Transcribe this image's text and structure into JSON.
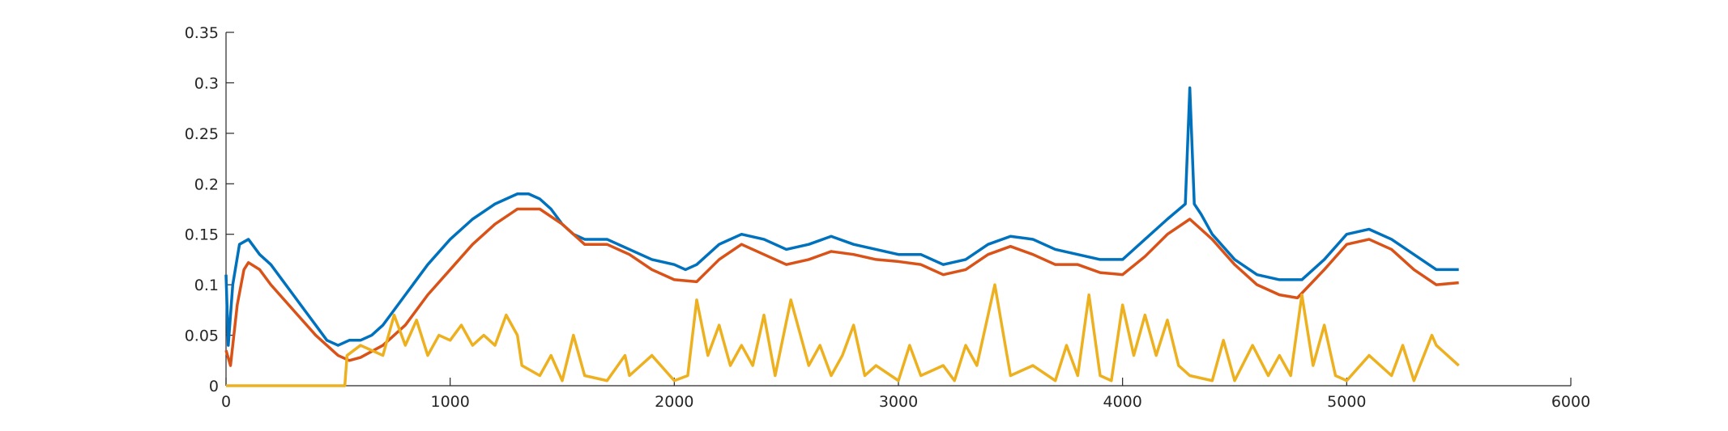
{
  "chart_data": {
    "type": "line",
    "xlim": [
      0,
      6000
    ],
    "xticks": [
      0,
      1000,
      2000,
      3000,
      4000,
      5000,
      6000
    ],
    "ylim": [
      0,
      0.35
    ],
    "yticks": [
      0,
      0.05,
      0.1,
      0.15,
      0.2,
      0.25,
      0.3,
      0.35
    ],
    "grid": false,
    "series": [
      {
        "color": "#0072bd",
        "x": [
          0,
          10,
          30,
          60,
          100,
          150,
          200,
          250,
          300,
          350,
          400,
          450,
          500,
          550,
          600,
          650,
          700,
          750,
          800,
          900,
          1000,
          1100,
          1200,
          1300,
          1350,
          1400,
          1450,
          1500,
          1550,
          1600,
          1700,
          1800,
          1900,
          2000,
          2050,
          2100,
          2200,
          2300,
          2400,
          2500,
          2600,
          2700,
          2800,
          2900,
          3000,
          3100,
          3200,
          3300,
          3400,
          3500,
          3600,
          3700,
          3800,
          3900,
          4000,
          4100,
          4200,
          4280,
          4300,
          4320,
          4350,
          4400,
          4500,
          4600,
          4700,
          4800,
          4900,
          5000,
          5100,
          5200,
          5300,
          5400,
          5500
        ],
        "values": [
          0.11,
          0.04,
          0.1,
          0.14,
          0.145,
          0.13,
          0.12,
          0.105,
          0.09,
          0.075,
          0.06,
          0.045,
          0.04,
          0.045,
          0.045,
          0.05,
          0.06,
          0.075,
          0.09,
          0.12,
          0.145,
          0.165,
          0.18,
          0.19,
          0.19,
          0.185,
          0.175,
          0.16,
          0.15,
          0.145,
          0.145,
          0.135,
          0.125,
          0.12,
          0.115,
          0.12,
          0.14,
          0.15,
          0.145,
          0.135,
          0.14,
          0.148,
          0.14,
          0.135,
          0.13,
          0.13,
          0.12,
          0.125,
          0.14,
          0.148,
          0.145,
          0.135,
          0.13,
          0.125,
          0.125,
          0.145,
          0.165,
          0.18,
          0.295,
          0.18,
          0.17,
          0.15,
          0.125,
          0.11,
          0.105,
          0.105,
          0.125,
          0.15,
          0.155,
          0.145,
          0.13,
          0.115,
          0.115
        ]
      },
      {
        "color": "#d95319",
        "x": [
          0,
          20,
          50,
          80,
          100,
          150,
          200,
          300,
          400,
          500,
          550,
          600,
          700,
          800,
          900,
          1000,
          1100,
          1200,
          1300,
          1400,
          1500,
          1600,
          1700,
          1800,
          1900,
          2000,
          2100,
          2200,
          2300,
          2400,
          2500,
          2600,
          2700,
          2800,
          2900,
          3000,
          3100,
          3200,
          3300,
          3400,
          3500,
          3600,
          3700,
          3800,
          3900,
          4000,
          4100,
          4200,
          4300,
          4400,
          4500,
          4600,
          4700,
          4780,
          4900,
          5000,
          5100,
          5200,
          5300,
          5400,
          5500
        ],
        "values": [
          0.035,
          0.02,
          0.08,
          0.115,
          0.122,
          0.115,
          0.1,
          0.075,
          0.05,
          0.03,
          0.025,
          0.028,
          0.04,
          0.06,
          0.09,
          0.115,
          0.14,
          0.16,
          0.175,
          0.175,
          0.16,
          0.14,
          0.14,
          0.13,
          0.115,
          0.105,
          0.103,
          0.125,
          0.14,
          0.13,
          0.12,
          0.125,
          0.133,
          0.13,
          0.125,
          0.123,
          0.12,
          0.11,
          0.115,
          0.13,
          0.138,
          0.13,
          0.12,
          0.12,
          0.112,
          0.11,
          0.128,
          0.15,
          0.165,
          0.145,
          0.12,
          0.1,
          0.09,
          0.087,
          0.115,
          0.14,
          0.145,
          0.135,
          0.115,
          0.1,
          0.102
        ]
      },
      {
        "color": "#edb120",
        "x": [
          0,
          530,
          540,
          600,
          700,
          750,
          800,
          850,
          900,
          950,
          1000,
          1050,
          1100,
          1150,
          1200,
          1250,
          1300,
          1320,
          1400,
          1450,
          1500,
          1550,
          1600,
          1700,
          1780,
          1800,
          1900,
          2000,
          2060,
          2100,
          2150,
          2200,
          2250,
          2300,
          2350,
          2400,
          2450,
          2520,
          2600,
          2650,
          2700,
          2750,
          2800,
          2850,
          2900,
          3000,
          3050,
          3100,
          3200,
          3250,
          3300,
          3350,
          3430,
          3500,
          3600,
          3700,
          3750,
          3800,
          3850,
          3900,
          3950,
          4000,
          4050,
          4100,
          4150,
          4200,
          4250,
          4300,
          4400,
          4450,
          4500,
          4580,
          4650,
          4700,
          4750,
          4800,
          4850,
          4900,
          4950,
          5000,
          5100,
          5200,
          5250,
          5300,
          5380,
          5400,
          5450,
          5500
        ],
        "values": [
          0,
          0,
          0.03,
          0.04,
          0.03,
          0.07,
          0.04,
          0.065,
          0.03,
          0.05,
          0.045,
          0.06,
          0.04,
          0.05,
          0.04,
          0.07,
          0.05,
          0.02,
          0.01,
          0.03,
          0.005,
          0.05,
          0.01,
          0.005,
          0.03,
          0.01,
          0.03,
          0.005,
          0.01,
          0.085,
          0.03,
          0.06,
          0.02,
          0.04,
          0.02,
          0.07,
          0.01,
          0.085,
          0.02,
          0.04,
          0.01,
          0.03,
          0.06,
          0.01,
          0.02,
          0.005,
          0.04,
          0.01,
          0.02,
          0.005,
          0.04,
          0.02,
          0.1,
          0.01,
          0.02,
          0.005,
          0.04,
          0.01,
          0.09,
          0.01,
          0.005,
          0.08,
          0.03,
          0.07,
          0.03,
          0.065,
          0.02,
          0.01,
          0.005,
          0.045,
          0.005,
          0.04,
          0.01,
          0.03,
          0.01,
          0.09,
          0.02,
          0.06,
          0.01,
          0.005,
          0.03,
          0.01,
          0.04,
          0.005,
          0.05,
          0.04,
          0.03,
          0.02
        ]
      }
    ]
  }
}
